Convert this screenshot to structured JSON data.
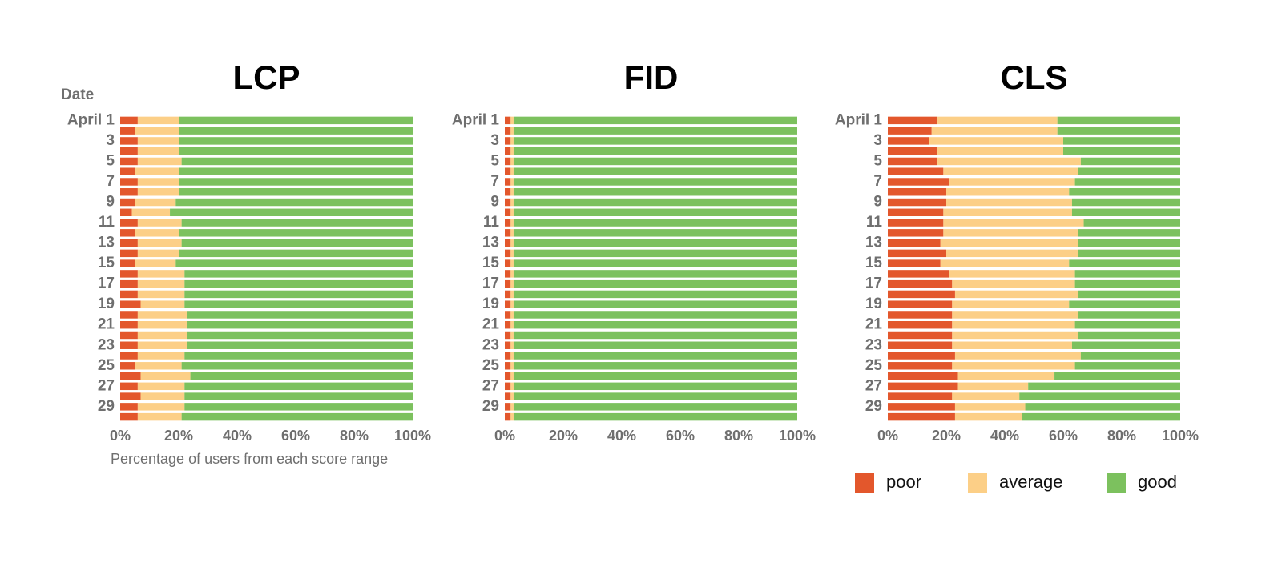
{
  "chart_data": [
    {
      "type": "bar",
      "orientation": "horizontal",
      "stacked": true,
      "title": "LCP",
      "ylabel": "Date",
      "xlabel": "Percentage of users from each score range",
      "categories": [
        "April 1",
        null,
        "3",
        null,
        "5",
        null,
        "7",
        null,
        "9",
        null,
        "11",
        null,
        "13",
        null,
        "15",
        null,
        "17",
        null,
        "19",
        null,
        "21",
        null,
        "23",
        null,
        "25",
        null,
        "27",
        null,
        "29",
        null
      ],
      "series": [
        {
          "color": "#e3572c",
          "values": [
            6,
            5,
            6,
            6,
            6,
            5,
            6,
            6,
            5,
            4,
            6,
            5,
            6,
            6,
            5,
            6,
            6,
            6,
            7,
            6,
            6,
            6,
            6,
            6,
            5,
            7,
            6,
            7,
            6,
            6
          ]
        },
        {
          "color": "#fccf87",
          "values": [
            14,
            15,
            14,
            14,
            15,
            15,
            14,
            14,
            14,
            13,
            15,
            15,
            15,
            14,
            14,
            16,
            16,
            16,
            15,
            17,
            17,
            17,
            17,
            16,
            16,
            17,
            16,
            15,
            16,
            15
          ]
        },
        {
          "color": "#7cc15e",
          "values": [
            80,
            80,
            80,
            80,
            79,
            80,
            80,
            80,
            81,
            83,
            79,
            80,
            79,
            80,
            81,
            78,
            78,
            78,
            78,
            77,
            77,
            77,
            77,
            78,
            79,
            76,
            78,
            78,
            78,
            79
          ]
        }
      ],
      "xlim": [
        0,
        100
      ],
      "xticks": [
        {
          "value": 0,
          "label": "0%"
        },
        {
          "value": 20,
          "label": "20%"
        },
        {
          "value": 40,
          "label": "40%"
        },
        {
          "value": 60,
          "label": "60%"
        },
        {
          "value": 80,
          "label": "80%"
        },
        {
          "value": 100,
          "label": "100%"
        }
      ]
    },
    {
      "type": "bar",
      "orientation": "horizontal",
      "stacked": true,
      "title": "FID",
      "categories": [
        "April 1",
        null,
        "3",
        null,
        "5",
        null,
        "7",
        null,
        "9",
        null,
        "11",
        null,
        "13",
        null,
        "15",
        null,
        "17",
        null,
        "19",
        null,
        "21",
        null,
        "23",
        null,
        "25",
        null,
        "27",
        null,
        "29",
        null
      ],
      "series": [
        {
          "color": "#e3572c",
          "values": [
            2,
            2,
            2,
            2,
            2,
            2,
            2,
            2,
            2,
            2,
            2,
            2,
            2,
            2,
            2,
            2,
            2,
            2,
            2,
            2,
            2,
            2,
            2,
            2,
            2,
            2,
            2,
            2,
            2,
            2
          ]
        },
        {
          "color": "#fccf87",
          "values": [
            1,
            1,
            1,
            1,
            1,
            1,
            1,
            1,
            1,
            1,
            1,
            1,
            1,
            1,
            1,
            1,
            1,
            1,
            1,
            1,
            1,
            1,
            1,
            1,
            1,
            1,
            1,
            1,
            1,
            1
          ]
        },
        {
          "color": "#7cc15e",
          "values": [
            97,
            97,
            97,
            97,
            97,
            97,
            97,
            97,
            97,
            97,
            97,
            97,
            97,
            97,
            97,
            97,
            97,
            97,
            97,
            97,
            97,
            97,
            97,
            97,
            97,
            97,
            97,
            97,
            97,
            97
          ]
        }
      ],
      "xlim": [
        0,
        100
      ],
      "xticks": [
        {
          "value": 0,
          "label": "0%"
        },
        {
          "value": 20,
          "label": "20%"
        },
        {
          "value": 40,
          "label": "40%"
        },
        {
          "value": 60,
          "label": "60%"
        },
        {
          "value": 80,
          "label": "80%"
        },
        {
          "value": 100,
          "label": "100%"
        }
      ]
    },
    {
      "type": "bar",
      "orientation": "horizontal",
      "stacked": true,
      "title": "CLS",
      "legend": "bottom",
      "categories": [
        "April 1",
        null,
        "3",
        null,
        "5",
        null,
        "7",
        null,
        "9",
        null,
        "11",
        null,
        "13",
        null,
        "15",
        null,
        "17",
        null,
        "19",
        null,
        "21",
        null,
        "23",
        null,
        "25",
        null,
        "27",
        null,
        "29",
        null
      ],
      "series": [
        {
          "name": "poor",
          "color": "#e3572c",
          "values": [
            17,
            15,
            14,
            17,
            17,
            19,
            21,
            20,
            20,
            19,
            19,
            19,
            18,
            20,
            18,
            21,
            22,
            23,
            22,
            22,
            22,
            22,
            22,
            23,
            22,
            24,
            24,
            22,
            23,
            23
          ]
        },
        {
          "name": "average",
          "color": "#fccf87",
          "values": [
            41,
            43,
            46,
            43,
            49,
            46,
            43,
            42,
            43,
            44,
            48,
            46,
            47,
            45,
            44,
            43,
            42,
            42,
            40,
            43,
            42,
            43,
            41,
            43,
            42,
            33,
            24,
            23,
            24,
            23
          ]
        },
        {
          "name": "good",
          "color": "#7cc15e",
          "values": [
            42,
            42,
            40,
            40,
            34,
            35,
            36,
            38,
            37,
            37,
            33,
            35,
            35,
            35,
            38,
            36,
            36,
            35,
            38,
            35,
            36,
            35,
            37,
            34,
            36,
            43,
            52,
            55,
            53,
            54
          ]
        }
      ],
      "xlim": [
        0,
        100
      ],
      "xticks": [
        {
          "value": 0,
          "label": "0%"
        },
        {
          "value": 20,
          "label": "20%"
        },
        {
          "value": 40,
          "label": "40%"
        },
        {
          "value": 60,
          "label": "60%"
        },
        {
          "value": 80,
          "label": "80%"
        },
        {
          "value": 100,
          "label": "100%"
        }
      ]
    }
  ]
}
